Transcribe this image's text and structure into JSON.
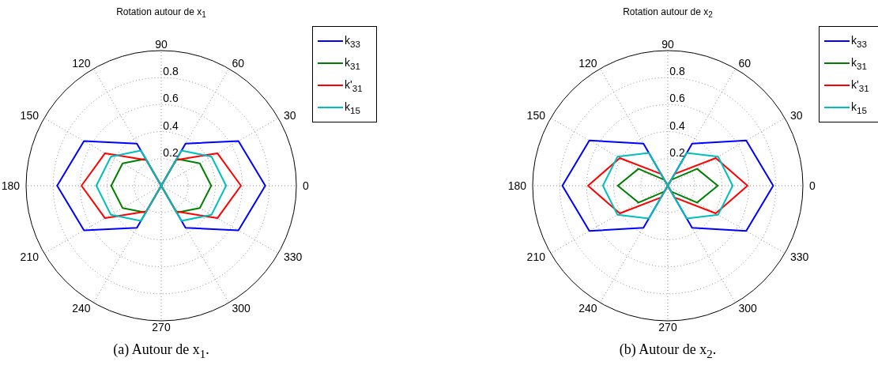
{
  "chart_data": [
    {
      "type": "radar",
      "title": "Rotation autour de x$_{1}$",
      "annotations": [
        "(a) Autour de x$_{1}$."
      ],
      "categories": [
        "90",
        "60",
        "30",
        "0",
        "330",
        "300",
        "270",
        "240",
        "210",
        "180",
        "150",
        "120"
      ],
      "ylim": [
        0,
        1
      ],
      "yticks": [
        0.2,
        0.4,
        0.6,
        0.8
      ],
      "grid": true,
      "legend": "top right",
      "line_style": "solid",
      "marker": "none",
      "series": [
        {
          "name": "k$_{33}$",
          "color": "#0000ff",
          "values": [
            0,
            0.36,
            0.66,
            0.77,
            0.66,
            0.36,
            0,
            0.36,
            0.66,
            0.77,
            0.66,
            0.36
          ]
        },
        {
          "name": "k$_{31}$",
          "color": "#008000",
          "values": [
            0,
            0.23,
            0.33,
            0.37,
            0.33,
            0.23,
            0,
            0.23,
            0.33,
            0.37,
            0.33,
            0.23
          ]
        },
        {
          "name": "k'$_{31}$",
          "color": "#ff0000",
          "values": [
            0,
            0.22,
            0.48,
            0.59,
            0.48,
            0.22,
            0,
            0.22,
            0.48,
            0.59,
            0.48,
            0.22
          ]
        },
        {
          "name": "k$_{15}$",
          "color": "#00bfbf",
          "values": [
            0,
            0.3,
            0.43,
            0.48,
            0.43,
            0.3,
            0,
            0.3,
            0.43,
            0.48,
            0.43,
            0.3
          ]
        }
      ]
    },
    {
      "type": "radar",
      "title": "Rotation autour de x$_{2}$",
      "annotations": [
        "(b) Autour de x$_{2}$."
      ],
      "categories": [
        "90",
        "60",
        "30",
        "0",
        "330",
        "300",
        "270",
        "240",
        "210",
        "180",
        "150",
        "120"
      ],
      "ylim": [
        0,
        1
      ],
      "yticks": [
        0.2,
        0.4,
        0.6,
        0.8
      ],
      "grid": true,
      "legend": "top right",
      "line_style": "solid",
      "marker": "none",
      "series": [
        {
          "name": "k$_{33}$",
          "color": "#0000ff",
          "values": [
            0,
            0.36,
            0.67,
            0.78,
            0.67,
            0.36,
            0,
            0.36,
            0.67,
            0.78,
            0.67,
            0.36
          ]
        },
        {
          "name": "k$_{31}$",
          "color": "#008000",
          "values": [
            0,
            0.05,
            0.25,
            0.37,
            0.25,
            0.05,
            0,
            0.05,
            0.25,
            0.37,
            0.25,
            0.05
          ]
        },
        {
          "name": "k'$_{31}$",
          "color": "#ff0000",
          "values": [
            0,
            0.1,
            0.41,
            0.59,
            0.41,
            0.1,
            0,
            0.1,
            0.41,
            0.59,
            0.41,
            0.1
          ]
        },
        {
          "name": "k$_{15}$",
          "color": "#00bfbf",
          "values": [
            0,
            0.28,
            0.43,
            0.48,
            0.43,
            0.28,
            0,
            0.28,
            0.43,
            0.48,
            0.43,
            0.28
          ]
        }
      ]
    }
  ]
}
